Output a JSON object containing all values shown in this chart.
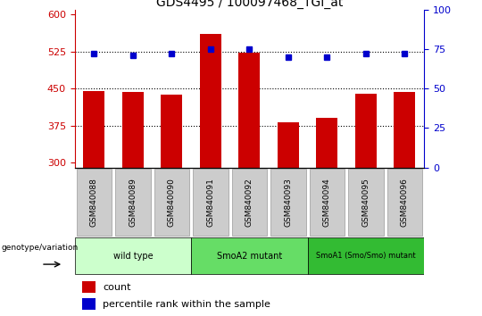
{
  "title": "GDS4495 / 100097468_TGI_at",
  "samples": [
    "GSM840088",
    "GSM840089",
    "GSM840090",
    "GSM840091",
    "GSM840092",
    "GSM840093",
    "GSM840094",
    "GSM840095",
    "GSM840096"
  ],
  "counts": [
    445,
    443,
    438,
    560,
    522,
    381,
    390,
    440,
    443
  ],
  "percentiles": [
    72,
    71,
    72,
    75,
    75,
    70,
    70,
    72,
    72
  ],
  "ylim_left": [
    290,
    610
  ],
  "ylim_right": [
    0,
    100
  ],
  "yticks_left": [
    300,
    375,
    450,
    525,
    600
  ],
  "yticks_right": [
    0,
    25,
    50,
    75,
    100
  ],
  "bar_color": "#cc0000",
  "dot_color": "#0000cc",
  "bar_width": 0.55,
  "groups": [
    {
      "label": "wild type",
      "start": 0,
      "end": 3,
      "color": "#ccffcc"
    },
    {
      "label": "SmoA2 mutant",
      "start": 3,
      "end": 6,
      "color": "#66dd66"
    },
    {
      "label": "SmoA1 (Smo/Smo) mutant",
      "start": 6,
      "end": 9,
      "color": "#33bb33"
    }
  ],
  "dotted_line_color": "black",
  "tick_color_left": "#cc0000",
  "tick_color_right": "#0000cc",
  "legend_count_label": "count",
  "legend_pct_label": "percentile rank within the sample",
  "genotype_label": "genotype/variation",
  "xticklabel_bg": "#cccccc",
  "background_color": "#ffffff"
}
